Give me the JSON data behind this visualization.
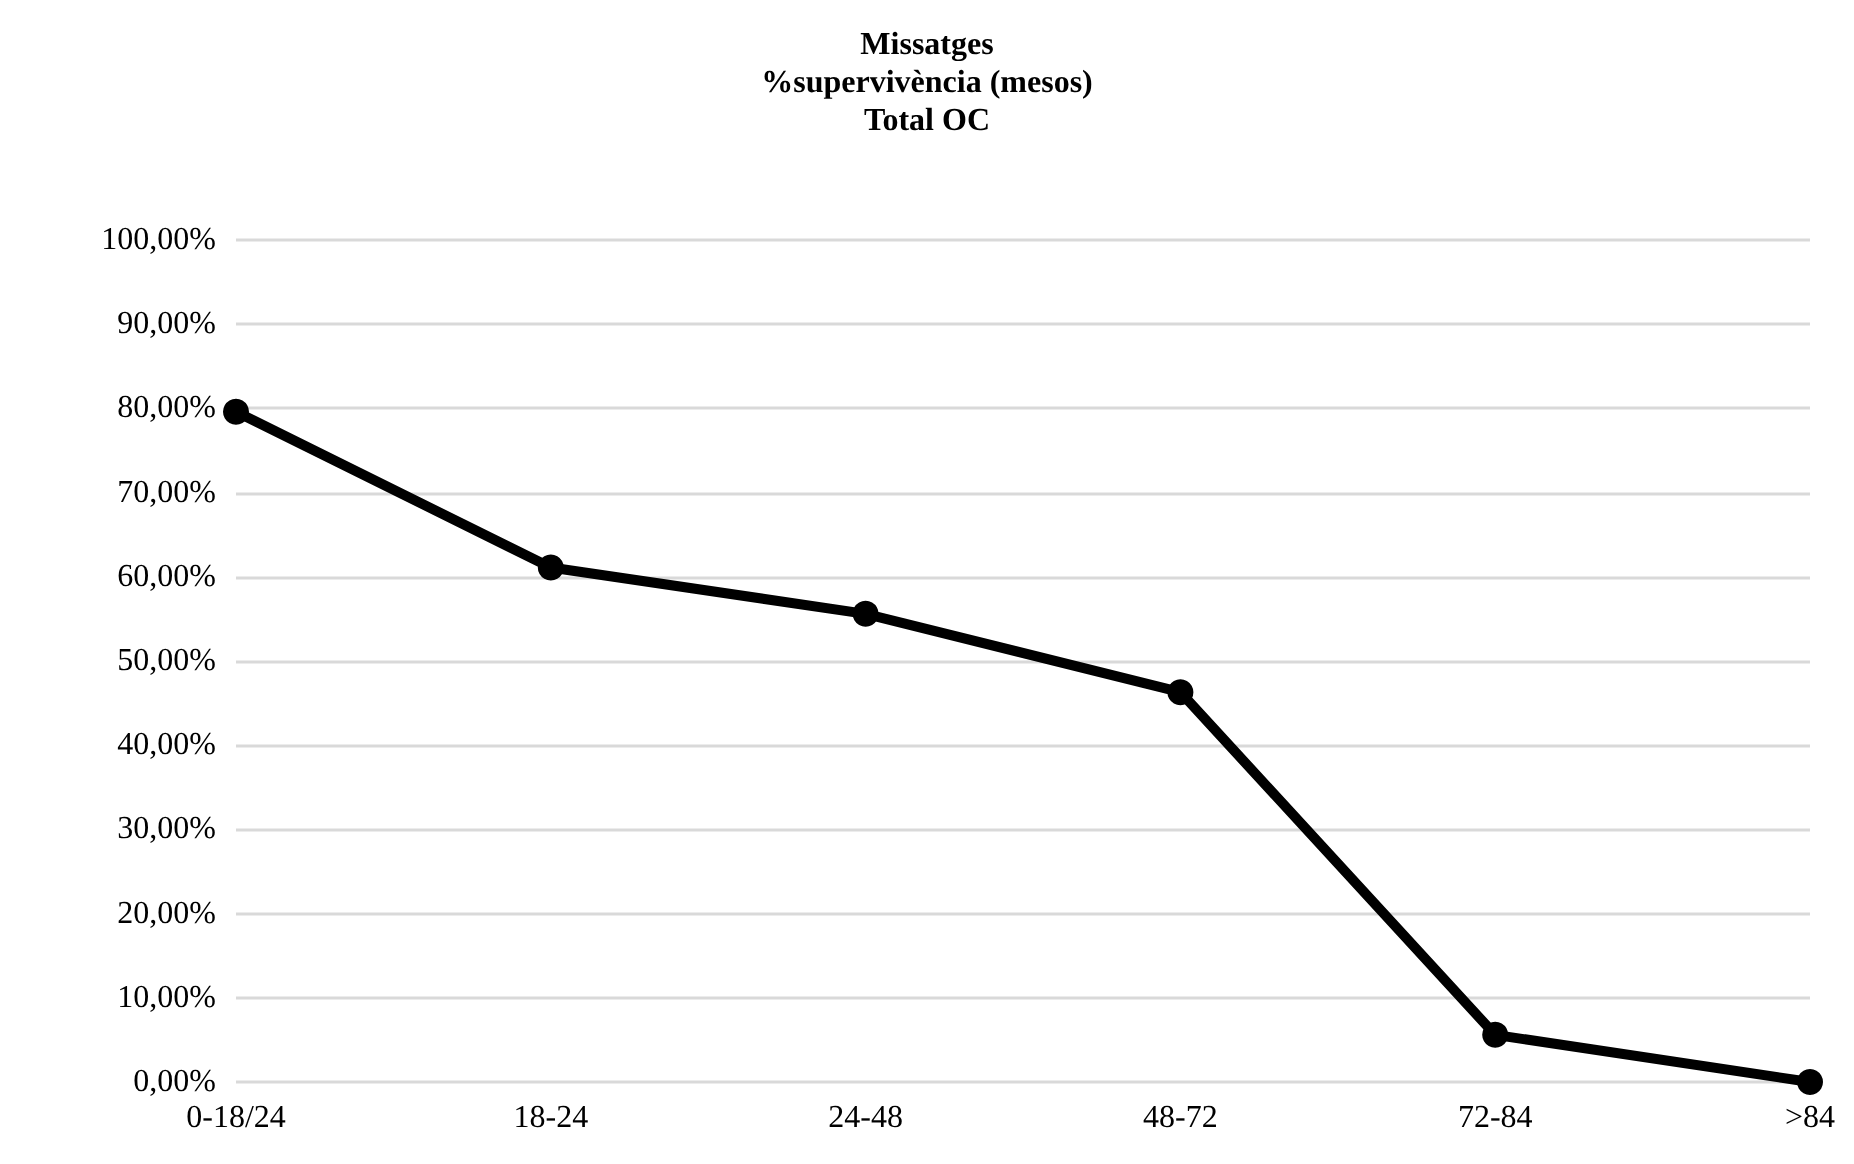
{
  "chart_data": {
    "type": "line",
    "title": "Missatges\n%supervivència (mesos)\nTotal OC",
    "categories": [
      "0-18/24",
      "18-24",
      "24-48",
      "48-72",
      "72-84",
      ">84"
    ],
    "series": [
      {
        "color": "#000000",
        "values": [
          79.6,
          61.1,
          55.6,
          46.3,
          5.6,
          0
        ]
      }
    ],
    "ylim": [
      0,
      100
    ],
    "yticks": [
      {
        "value": 0,
        "label": "0,00%"
      },
      {
        "value": 10,
        "label": "10,00%"
      },
      {
        "value": 20,
        "label": "20,00%"
      },
      {
        "value": 30,
        "label": "30,00%"
      },
      {
        "value": 40,
        "label": "40,00%"
      },
      {
        "value": 50,
        "label": "50,00%"
      },
      {
        "value": 60,
        "label": "60,00%"
      },
      {
        "value": 70,
        "label": "70,00%"
      },
      {
        "value": 80,
        "label": "80,00%"
      },
      {
        "value": 90,
        "label": "90,00%"
      },
      {
        "value": 100,
        "label": "100,00%"
      }
    ],
    "grid": "y",
    "marker": "circle",
    "line_style": "solid"
  }
}
